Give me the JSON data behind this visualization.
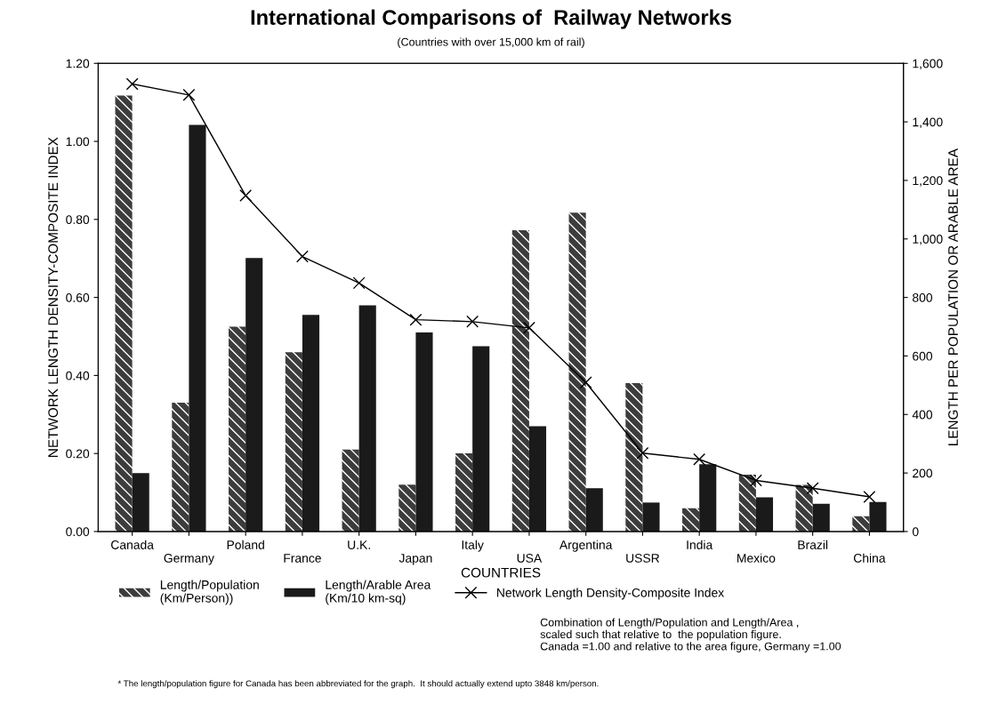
{
  "chart_data": {
    "type": "bar",
    "title": "International Comparisons of  Railway Networks",
    "subtitle": "(Countries with over 15,000 km of rail)",
    "xlabel": "COUNTRIES",
    "ylabel": "NETWORK LENGTH DENSITY-COMPOSITE INDEX",
    "y2label": "LENGTH PER POPULATION OR ARABLE AREA",
    "categories": [
      "Canada",
      "Germany",
      "Poland",
      "France",
      "U.K.",
      "Japan",
      "Italy",
      "USA",
      "Argentina",
      "USSR",
      "India",
      "Mexico",
      "Brazil",
      "China"
    ],
    "series": [
      {
        "name": "Length/Population\n(Km/Person))",
        "axis": "y2",
        "color": "#3c3c3c",
        "values": [
          1490,
          440,
          700,
          613,
          280,
          160,
          267,
          1030,
          1090,
          507,
          80,
          194,
          159,
          52
        ]
      },
      {
        "name": "Length/Arable Area\n(Km/10 km-sq)",
        "axis": "y2",
        "color": "#1a1a1a",
        "values": [
          200,
          1390,
          935,
          740,
          773,
          680,
          633,
          360,
          148,
          99,
          230,
          117,
          95,
          101
        ]
      },
      {
        "name": "Network Length Density-Composite Index",
        "type": "line",
        "color": "#000000",
        "values": [
          1.147,
          1.119,
          0.861,
          0.705,
          0.637,
          0.543,
          0.538,
          0.522,
          0.382,
          0.201,
          0.185,
          0.131,
          0.111,
          0.089
        ]
      }
    ],
    "ylim": [
      0,
      1.2
    ],
    "yticks": [
      {
        "value": 0,
        "label": "0.00"
      },
      {
        "value": 0.2,
        "label": "0.20"
      },
      {
        "value": 0.4,
        "label": "0.40"
      },
      {
        "value": 0.6,
        "label": "0.60"
      },
      {
        "value": 0.8,
        "label": "0.80"
      },
      {
        "value": 1.0,
        "label": "1.00"
      },
      {
        "value": 1.2,
        "label": "1.20"
      }
    ],
    "y2lim": [
      0,
      1600
    ],
    "y2ticks": [
      0,
      200,
      400,
      600,
      800,
      {
        "value": 1000,
        "label": "1,000"
      },
      {
        "value": 1200,
        "label": "1,200"
      },
      {
        "value": 1400,
        "label": "1,400"
      },
      {
        "value": 1600,
        "label": "1,600"
      }
    ],
    "marker": "cross",
    "grid": false,
    "legend": "bottom",
    "annotations": [
      "Combination of Length/Population and Length/Area ,\nscaled such that relative to  the population figure.\nCanada =1.00 and relative to the area figure, Germany =1.00",
      "* The length/population figure for Canada has been abbreviated for the graph.  It should actually extend upto 3848 km/person."
    ]
  }
}
